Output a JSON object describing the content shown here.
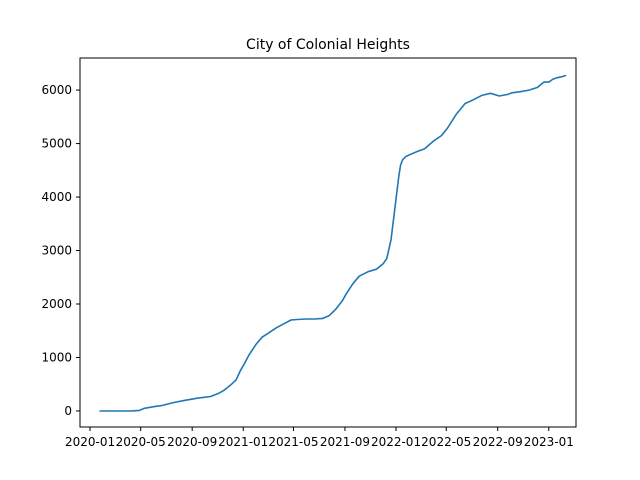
{
  "chart_data": {
    "type": "line",
    "title": "City of Colonial Heights",
    "xlabel": "",
    "ylabel": "",
    "grid": false,
    "xlim": [
      "2019-12-08",
      "2023-03-07"
    ],
    "ylim": [
      -300,
      6600
    ],
    "x_ticks": [
      {
        "date": "2020-01-01",
        "label": "2020-01"
      },
      {
        "date": "2020-05-01",
        "label": "2020-05"
      },
      {
        "date": "2020-09-01",
        "label": "2020-09"
      },
      {
        "date": "2021-01-01",
        "label": "2021-01"
      },
      {
        "date": "2021-05-01",
        "label": "2021-05"
      },
      {
        "date": "2021-09-01",
        "label": "2021-09"
      },
      {
        "date": "2022-01-01",
        "label": "2022-01"
      },
      {
        "date": "2022-05-01",
        "label": "2022-05"
      },
      {
        "date": "2022-09-01",
        "label": "2022-09"
      },
      {
        "date": "2023-01-01",
        "label": "2023-01"
      }
    ],
    "y_ticks": [
      0,
      1000,
      2000,
      3000,
      4000,
      5000,
      6000
    ],
    "series": [
      {
        "name": "City of Colonial Heights",
        "color": "#1f77b4",
        "x": [
          "2020-01-25",
          "2020-02-15",
          "2020-03-15",
          "2020-04-05",
          "2020-04-15",
          "2020-04-28",
          "2020-05-10",
          "2020-06-01",
          "2020-06-20",
          "2020-07-15",
          "2020-08-15",
          "2020-09-15",
          "2020-10-15",
          "2020-11-01",
          "2020-11-15",
          "2020-12-01",
          "2020-12-15",
          "2020-12-25",
          "2021-01-05",
          "2021-01-15",
          "2021-02-01",
          "2021-02-15",
          "2021-03-01",
          "2021-03-20",
          "2021-04-10",
          "2021-04-25",
          "2021-05-10",
          "2021-06-01",
          "2021-06-20",
          "2021-07-10",
          "2021-07-25",
          "2021-08-10",
          "2021-08-25",
          "2021-09-05",
          "2021-09-20",
          "2021-10-05",
          "2021-10-25",
          "2021-11-15",
          "2021-12-01",
          "2021-12-10",
          "2021-12-20",
          "2021-12-28",
          "2022-01-03",
          "2022-01-08",
          "2022-01-12",
          "2022-01-17",
          "2022-01-25",
          "2022-02-05",
          "2022-02-20",
          "2022-03-10",
          "2022-04-01",
          "2022-04-20",
          "2022-05-05",
          "2022-05-25",
          "2022-06-15",
          "2022-07-05",
          "2022-07-25",
          "2022-08-15",
          "2022-09-05",
          "2022-09-25",
          "2022-10-05",
          "2022-10-25",
          "2022-11-15",
          "2022-12-05",
          "2022-12-20",
          "2023-01-01",
          "2023-01-10",
          "2023-01-20",
          "2023-02-01",
          "2023-02-10"
        ],
        "values": [
          0,
          0,
          0,
          0,
          3,
          10,
          50,
          80,
          100,
          150,
          200,
          240,
          270,
          320,
          380,
          480,
          580,
          750,
          900,
          1050,
          1250,
          1380,
          1450,
          1550,
          1640,
          1700,
          1710,
          1720,
          1720,
          1730,
          1780,
          1900,
          2050,
          2200,
          2380,
          2520,
          2600,
          2650,
          2750,
          2850,
          3200,
          3700,
          4100,
          4400,
          4600,
          4700,
          4760,
          4800,
          4850,
          4900,
          5050,
          5150,
          5300,
          5550,
          5750,
          5820,
          5900,
          5940,
          5890,
          5920,
          5950,
          5970,
          6000,
          6050,
          6150,
          6150,
          6200,
          6230,
          6250,
          6270
        ]
      }
    ]
  }
}
